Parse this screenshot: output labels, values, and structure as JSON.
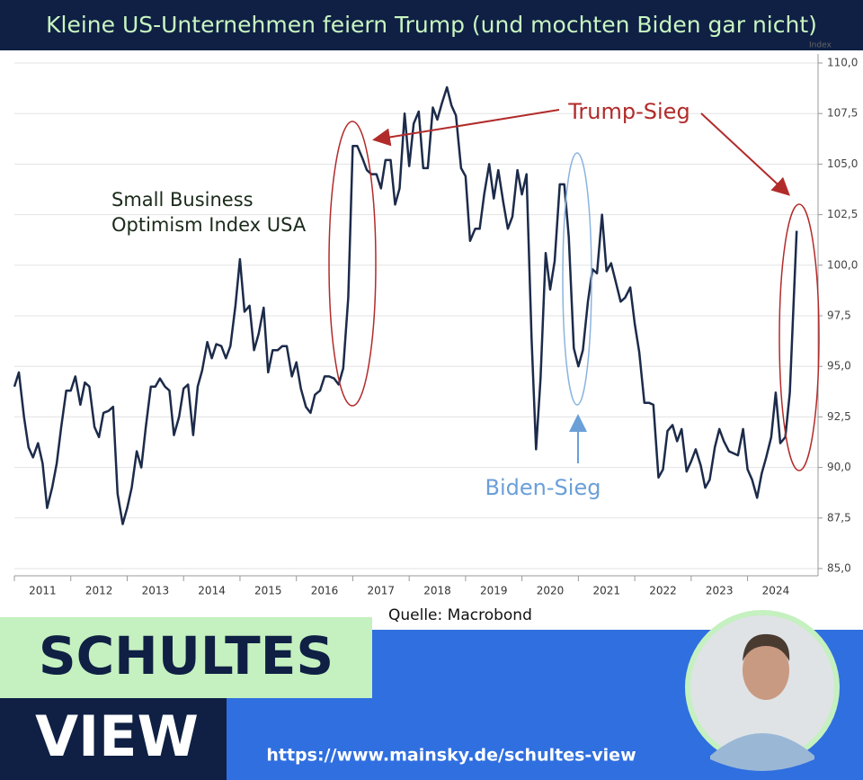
{
  "chart_data": {
    "type": "line",
    "title": "Kleine US-Unternehmen feiern Trump (und mochten Biden gar nicht)",
    "y_axis_label": "Index",
    "series": [
      {
        "name": "Small Business Optimism Index USA",
        "color": "#1c2b4a",
        "x": [
          2011.0,
          2011.08,
          2011.17,
          2011.25,
          2011.33,
          2011.42,
          2011.5,
          2011.58,
          2011.67,
          2011.75,
          2011.83,
          2011.92,
          2012.0,
          2012.08,
          2012.17,
          2012.25,
          2012.33,
          2012.42,
          2012.5,
          2012.58,
          2012.67,
          2012.75,
          2012.83,
          2012.92,
          2013.0,
          2013.08,
          2013.17,
          2013.25,
          2013.33,
          2013.42,
          2013.5,
          2013.58,
          2013.67,
          2013.75,
          2013.83,
          2013.92,
          2014.0,
          2014.08,
          2014.17,
          2014.25,
          2014.33,
          2014.42,
          2014.5,
          2014.58,
          2014.67,
          2014.75,
          2014.83,
          2014.92,
          2015.0,
          2015.08,
          2015.17,
          2015.25,
          2015.33,
          2015.42,
          2015.5,
          2015.58,
          2015.67,
          2015.75,
          2015.83,
          2015.92,
          2016.0,
          2016.08,
          2016.17,
          2016.25,
          2016.33,
          2016.42,
          2016.5,
          2016.58,
          2016.67,
          2016.75,
          2016.83,
          2016.92,
          2017.0,
          2017.08,
          2017.17,
          2017.25,
          2017.33,
          2017.42,
          2017.5,
          2017.58,
          2017.67,
          2017.75,
          2017.83,
          2017.92,
          2018.0,
          2018.08,
          2018.17,
          2018.25,
          2018.33,
          2018.42,
          2018.5,
          2018.58,
          2018.67,
          2018.75,
          2018.83,
          2018.92,
          2019.0,
          2019.08,
          2019.17,
          2019.25,
          2019.33,
          2019.42,
          2019.5,
          2019.58,
          2019.67,
          2019.75,
          2019.83,
          2019.92,
          2020.0,
          2020.08,
          2020.17,
          2020.25,
          2020.33,
          2020.42,
          2020.5,
          2020.58,
          2020.67,
          2020.75,
          2020.83,
          2020.92,
          2021.0,
          2021.08,
          2021.17,
          2021.25,
          2021.33,
          2021.42,
          2021.5,
          2021.58,
          2021.67,
          2021.75,
          2021.83,
          2021.92,
          2022.0,
          2022.08,
          2022.17,
          2022.25,
          2022.33,
          2022.42,
          2022.5,
          2022.58,
          2022.67,
          2022.75,
          2022.83,
          2022.92,
          2023.0,
          2023.08,
          2023.17,
          2023.25,
          2023.33,
          2023.42,
          2023.5,
          2023.58,
          2023.67,
          2023.75,
          2023.83,
          2023.92,
          2024.0,
          2024.08,
          2024.17,
          2024.25,
          2024.33,
          2024.42,
          2024.5,
          2024.58,
          2024.67,
          2024.75,
          2024.87
        ],
        "values": [
          94.0,
          94.7,
          92.5,
          91.0,
          90.5,
          91.2,
          90.2,
          88.0,
          89.0,
          90.2,
          92.0,
          93.8,
          93.8,
          94.5,
          93.1,
          94.2,
          94.0,
          92.0,
          91.5,
          92.7,
          92.8,
          93.0,
          88.7,
          87.2,
          88.0,
          89.0,
          90.8,
          90.0,
          92.0,
          94.0,
          94.0,
          94.4,
          94.0,
          93.8,
          91.6,
          92.5,
          93.9,
          94.1,
          91.6,
          94.0,
          94.8,
          96.2,
          95.4,
          96.1,
          96.0,
          95.4,
          96.0,
          98.0,
          100.3,
          97.7,
          98.0,
          95.8,
          96.6,
          97.9,
          94.7,
          95.8,
          95.8,
          96.0,
          96.0,
          94.5,
          95.2,
          93.9,
          93.0,
          92.7,
          93.6,
          93.8,
          94.5,
          94.5,
          94.4,
          94.1,
          94.9,
          98.4,
          105.9,
          105.9,
          105.3,
          104.7,
          104.5,
          104.5,
          103.8,
          105.2,
          105.2,
          103.0,
          103.8,
          107.5,
          104.9,
          107.0,
          107.6,
          104.8,
          104.8,
          107.8,
          107.2,
          108.0,
          108.8,
          107.9,
          107.4,
          104.8,
          104.4,
          101.2,
          101.8,
          101.8,
          103.5,
          105.0,
          103.3,
          104.7,
          103.1,
          101.8,
          102.4,
          104.7,
          103.5,
          104.5,
          96.4,
          90.9,
          94.4,
          100.6,
          98.8,
          100.2,
          104.0,
          104.0,
          101.4,
          95.9,
          95.0,
          95.8,
          98.2,
          99.8,
          99.6,
          102.5,
          99.7,
          100.1,
          99.1,
          98.2,
          98.4,
          98.9,
          97.1,
          95.7,
          93.2,
          93.2,
          93.1,
          89.5,
          89.9,
          91.8,
          92.1,
          91.3,
          91.9,
          89.8,
          90.3,
          90.9,
          90.1,
          89.0,
          89.4,
          91.0,
          91.9,
          91.3,
          90.8,
          90.7,
          90.6,
          91.9,
          89.9,
          89.4,
          88.5,
          89.7,
          90.5,
          91.5,
          93.7,
          91.2,
          91.5,
          93.7,
          101.7
        ]
      }
    ],
    "xlim": [
      2011.0,
      2025.25
    ],
    "xticks": [
      2011,
      2012,
      2013,
      2014,
      2015,
      2016,
      2017,
      2018,
      2019,
      2020,
      2021,
      2022,
      2023,
      2024
    ],
    "ylim": [
      85,
      110
    ],
    "yticks": [
      {
        "value": 85,
        "label": "85,0"
      },
      {
        "value": 87.5,
        "label": "87,5"
      },
      {
        "value": 90,
        "label": "90,0"
      },
      {
        "value": 92.5,
        "label": "92,5"
      },
      {
        "value": 95,
        "label": "95,0"
      },
      {
        "value": 97.5,
        "label": "97,5"
      },
      {
        "value": 100,
        "label": "100,0"
      },
      {
        "value": 102.5,
        "label": "102,5"
      },
      {
        "value": 105,
        "label": "105,0"
      },
      {
        "value": 107.5,
        "label": "107,5"
      },
      {
        "value": 110,
        "label": "110,0"
      }
    ],
    "grid": true,
    "annotations": {
      "trump": "Trump-Sieg",
      "biden": "Biden-Sieg",
      "source": "Quelle: Macrobond"
    }
  },
  "branding": {
    "name_top": "SCHULTES",
    "name_bottom": "VIEW",
    "url": "https://www.mainsky.de/schultes-view"
  }
}
